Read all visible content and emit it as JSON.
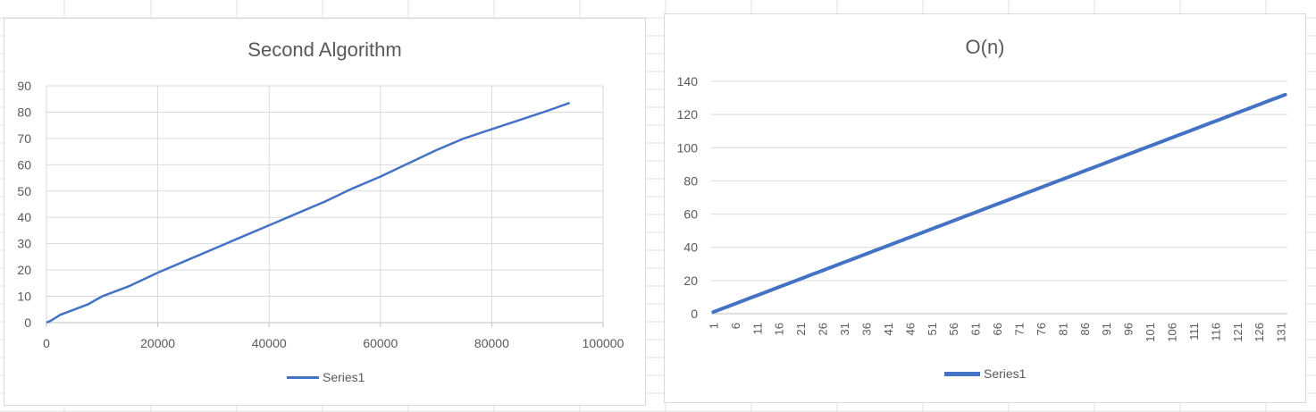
{
  "chart_data": [
    {
      "type": "scatter",
      "title": "Second Algorithm",
      "xlim": [
        0,
        100000
      ],
      "ylim": [
        0,
        90
      ],
      "x_ticks": [
        0,
        20000,
        40000,
        60000,
        80000,
        100000
      ],
      "y_ticks": [
        0,
        10,
        20,
        30,
        40,
        50,
        60,
        70,
        80,
        90
      ],
      "grid": true,
      "legend_position": "bottom",
      "series": [
        {
          "name": "Series1",
          "color": "#4472c4",
          "points": [
            [
              0,
              0
            ],
            [
              1000,
              1
            ],
            [
              2500,
              3
            ],
            [
              5000,
              5
            ],
            [
              7500,
              7
            ],
            [
              10000,
              10
            ],
            [
              12500,
              12
            ],
            [
              15000,
              14
            ],
            [
              20000,
              19
            ],
            [
              25000,
              23.5
            ],
            [
              30000,
              28
            ],
            [
              35000,
              32.5
            ],
            [
              40000,
              37
            ],
            [
              45000,
              41.5
            ],
            [
              50000,
              46
            ],
            [
              55000,
              51
            ],
            [
              60000,
              55.5
            ],
            [
              65000,
              60.5
            ],
            [
              70000,
              65.5
            ],
            [
              75000,
              70
            ],
            [
              80000,
              73.5
            ],
            [
              85000,
              77
            ],
            [
              90000,
              80.5
            ],
            [
              94000,
              83.5
            ]
          ]
        }
      ]
    },
    {
      "type": "line",
      "title": "O(n)",
      "categories_range": [
        1,
        132
      ],
      "tick_labels": [
        "1",
        "6",
        "11",
        "16",
        "21",
        "26",
        "31",
        "36",
        "41",
        "46",
        "51",
        "56",
        "61",
        "66",
        "71",
        "76",
        "81",
        "86",
        "91",
        "96",
        "101",
        "106",
        "111",
        "116",
        "121",
        "126",
        "131"
      ],
      "ylim": [
        0,
        140
      ],
      "y_ticks": [
        0,
        20,
        40,
        60,
        80,
        100,
        120,
        140
      ],
      "grid": true,
      "legend_position": "bottom",
      "series": [
        {
          "name": "Series1",
          "color": "#4472c4",
          "values_rule": "y = x for categories 1..132"
        }
      ]
    }
  ]
}
